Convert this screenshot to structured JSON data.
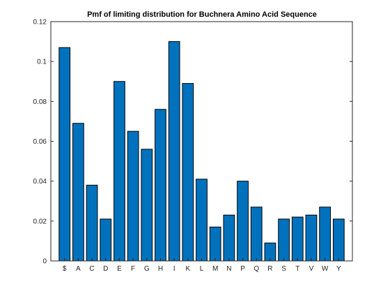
{
  "chart_data": {
    "type": "bar",
    "title": "Pmf of limiting distribution for Buchnera Amino Acid Sequence",
    "xlabel": "",
    "ylabel": "",
    "categories": [
      "$",
      "A",
      "C",
      "D",
      "E",
      "F",
      "G",
      "H",
      "I",
      "K",
      "L",
      "M",
      "N",
      "P",
      "Q",
      "R",
      "S",
      "T",
      "V",
      "W",
      "Y"
    ],
    "values": [
      0.107,
      0.069,
      0.038,
      0.021,
      0.09,
      0.065,
      0.056,
      0.076,
      0.11,
      0.089,
      0.041,
      0.017,
      0.023,
      0.04,
      0.027,
      0.009,
      0.021,
      0.022,
      0.023,
      0.027,
      0.021
    ],
    "ylim": [
      0,
      0.12
    ],
    "yticks": [
      0,
      0.02,
      0.04,
      0.06,
      0.08,
      0.1,
      0.12
    ],
    "ytick_labels": [
      "0",
      "0.02",
      "0.04",
      "0.06",
      "0.08",
      "0.1",
      "0.12"
    ],
    "bar_color": "#0072BD",
    "edge_color": "#000000",
    "grid": false,
    "box": true
  }
}
